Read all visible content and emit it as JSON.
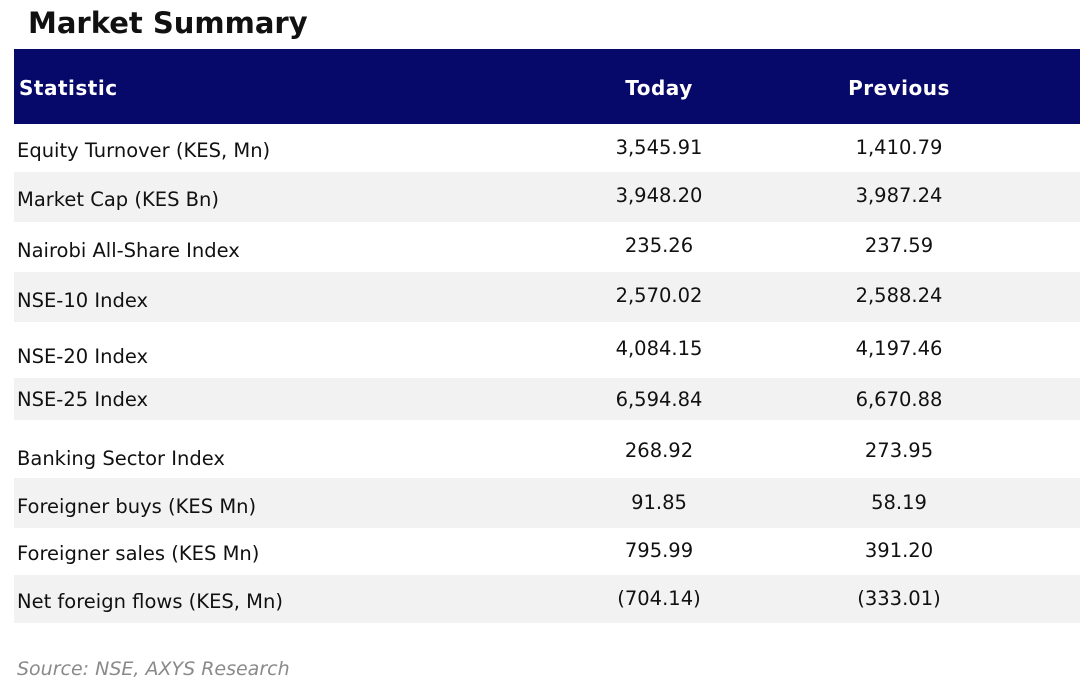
{
  "title": "Market Summary",
  "table": {
    "headers": [
      "Statistic",
      "Today",
      "Previous"
    ],
    "rows": [
      {
        "statistic": "Equity Turnover (KES, Mn)",
        "today": "3,545.91",
        "previous": "1,410.79"
      },
      {
        "statistic": "Market Cap (KES Bn)",
        "today": "3,948.20",
        "previous": "3,987.24"
      },
      {
        "statistic": "Nairobi All-Share Index",
        "today": "235.26",
        "previous": "237.59"
      },
      {
        "statistic": "NSE-10 Index",
        "today": "2,570.02",
        "previous": "2,588.24"
      },
      {
        "statistic": "NSE-20 Index",
        "today": "4,084.15",
        "previous": "4,197.46"
      },
      {
        "statistic": "NSE-25 Index",
        "today": "6,594.84",
        "previous": "6,670.88"
      },
      {
        "statistic": "Banking Sector Index",
        "today": "268.92",
        "previous": "273.95"
      },
      {
        "statistic": "Foreigner buys (KES Mn)",
        "today": "91.85",
        "previous": "58.19"
      },
      {
        "statistic": "Foreigner sales (KES Mn)",
        "today": "795.99",
        "previous": "391.20"
      },
      {
        "statistic": "Net foreign flows (KES, Mn)",
        "today": "(704.14)",
        "previous": "(333.01)"
      }
    ]
  },
  "source": "Source: NSE, AXYS Research",
  "colors": {
    "header_bg": "#07096a",
    "header_text": "#ffffff",
    "alt_row_bg": "#f2f2f2",
    "source_text": "#8a8a8a"
  }
}
